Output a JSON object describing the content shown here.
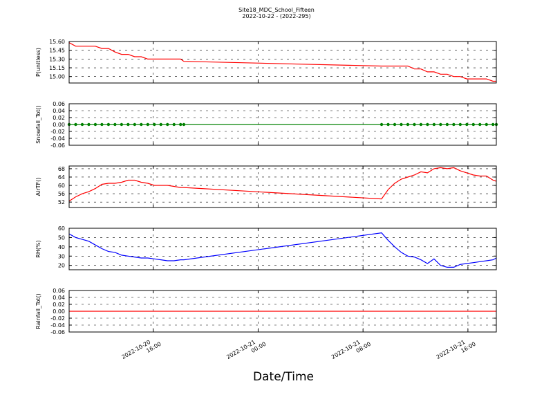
{
  "title": "Site18_MDC_School_Fifteen",
  "subtitle": "2022-10-22 - (2022-295)",
  "xlabel": "Date/Time",
  "xlim": [
    "2022-10-20 09:35",
    "2022-10-21 18:10"
  ],
  "xticks": [
    {
      "value": "2022-10-20 16:00",
      "label": [
        "2022-10-20",
        "16:00"
      ]
    },
    {
      "value": "2022-10-21 00:00",
      "label": [
        "2022-10-21",
        "00:00"
      ]
    },
    {
      "value": "2022-10-21 08:00",
      "label": [
        "2022-10-21",
        "08:00"
      ]
    },
    {
      "value": "2022-10-21 16:00",
      "label": [
        "2022-10-21",
        "16:00"
      ]
    }
  ],
  "x": [
    "2022-10-20 09:35",
    "2022-10-20 10:05",
    "2022-10-20 10:35",
    "2022-10-20 11:05",
    "2022-10-20 11:35",
    "2022-10-20 12:05",
    "2022-10-20 12:35",
    "2022-10-20 13:05",
    "2022-10-20 13:35",
    "2022-10-20 14:05",
    "2022-10-20 14:35",
    "2022-10-20 15:05",
    "2022-10-20 15:35",
    "2022-10-20 16:05",
    "2022-10-20 16:35",
    "2022-10-20 17:05",
    "2022-10-20 17:35",
    "2022-10-20 18:05",
    "2022-10-20 18:20",
    "2022-10-21 09:25",
    "2022-10-21 09:55",
    "2022-10-21 10:25",
    "2022-10-21 10:55",
    "2022-10-21 11:25",
    "2022-10-21 11:55",
    "2022-10-21 12:25",
    "2022-10-21 12:55",
    "2022-10-21 13:25",
    "2022-10-21 13:55",
    "2022-10-21 14:25",
    "2022-10-21 14:55",
    "2022-10-21 15:25",
    "2022-10-21 15:55",
    "2022-10-21 16:25",
    "2022-10-21 16:55",
    "2022-10-21 17:25",
    "2022-10-21 17:55",
    "2022-10-21 18:10"
  ],
  "chart_data": [
    {
      "type": "line",
      "ylabel": "P(unitless)",
      "color": "#ff0000",
      "grid": true,
      "ylim": [
        14.89,
        15.6
      ],
      "yticks": [
        {
          "value": 15.6,
          "label": "15.60"
        },
        15.45,
        {
          "value": 15.3,
          "label": "15.30"
        },
        15.15,
        {
          "value": 15.0,
          "label": "15.00"
        }
      ],
      "values": [
        15.58,
        15.52,
        15.52,
        15.52,
        15.52,
        15.48,
        15.48,
        15.42,
        15.38,
        15.38,
        15.34,
        15.34,
        15.3,
        15.3,
        15.3,
        15.3,
        15.3,
        15.3,
        15.26,
        15.18,
        15.18,
        15.18,
        15.18,
        15.18,
        15.13,
        15.13,
        15.08,
        15.08,
        15.04,
        15.04,
        15.0,
        15.0,
        14.96,
        14.96,
        14.96,
        14.96,
        14.92,
        14.92
      ]
    },
    {
      "type": "line",
      "ylabel": "Snowfall_Tot()",
      "color": "#008000",
      "markers": true,
      "grid": true,
      "ylim": [
        -0.06,
        0.06
      ],
      "yticks": [
        0.06,
        0.04,
        0.02,
        {
          "value": 0,
          "label": "0.00"
        },
        -0.02,
        -0.04,
        -0.06
      ],
      "values": [
        0,
        0,
        0,
        0,
        0,
        0,
        0,
        0,
        0,
        0,
        0,
        0,
        0,
        0,
        0,
        0,
        0,
        0,
        0,
        0,
        0,
        0,
        0,
        0,
        0,
        0,
        0,
        0,
        0,
        0,
        0,
        0,
        0,
        0,
        0,
        0,
        0,
        0
      ]
    },
    {
      "type": "line",
      "ylabel": "AirTF()",
      "color": "#ff0000",
      "grid": true,
      "ylim": [
        49.4,
        69.3
      ],
      "yticks": [
        68,
        64,
        60,
        56,
        52
      ],
      "values": [
        52.5,
        54.5,
        56,
        57,
        58.5,
        60.5,
        61,
        61,
        61.5,
        62.5,
        62.5,
        61.5,
        61,
        60,
        60,
        60,
        59.5,
        59,
        59,
        53.5,
        58,
        61,
        63,
        64,
        65,
        66.5,
        66,
        68,
        68.5,
        68,
        68.5,
        67,
        66,
        65,
        64.5,
        64.5,
        62.5,
        62
      ]
    },
    {
      "type": "line",
      "ylabel": "RH(%)",
      "color": "#0000ff",
      "grid": true,
      "ylim": [
        15.3,
        60
      ],
      "yticks": [
        60,
        50,
        40,
        30,
        20
      ],
      "values": [
        54,
        50,
        48,
        46,
        42,
        38,
        35,
        34,
        31,
        30,
        29,
        28,
        28,
        27,
        26,
        25,
        25,
        26,
        26,
        55,
        47,
        40,
        34,
        30,
        29,
        26,
        22,
        27,
        20,
        18,
        18,
        21,
        22,
        23,
        24,
        25,
        26,
        28
      ]
    },
    {
      "type": "line",
      "ylabel": "Rainfall_Tot()",
      "color": "#ff0000",
      "grid": true,
      "ylim": [
        -0.06,
        0.06
      ],
      "yticks": [
        0.06,
        0.04,
        0.02,
        {
          "value": 0,
          "label": "0.00"
        },
        -0.02,
        -0.04,
        -0.06
      ],
      "values": [
        0,
        0,
        0,
        0,
        0,
        0,
        0,
        0,
        0,
        0,
        0,
        0,
        0,
        0,
        0,
        0,
        0,
        0,
        0,
        0,
        0,
        0,
        0,
        0,
        0,
        0,
        0,
        0,
        0,
        0,
        0,
        0,
        0,
        0,
        0,
        0,
        0,
        0
      ]
    }
  ]
}
